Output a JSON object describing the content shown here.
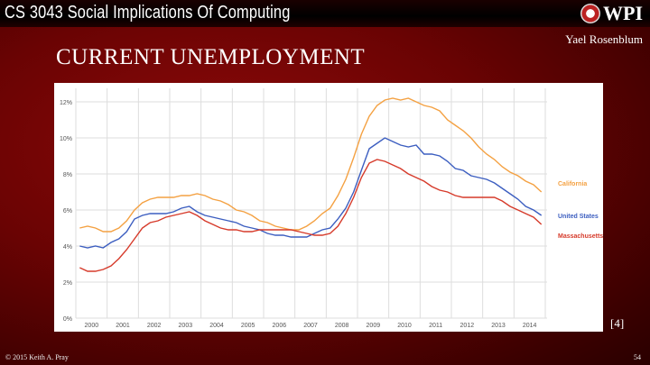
{
  "slide": {
    "course": "CS 3043 Social Implications Of Computing",
    "logo_text": "WPI",
    "author": "Yael Rosenblum",
    "title": "CURRENT UNEMPLOYMENT",
    "reference": "[4]",
    "copyright": "© 2015 Keith A. Pray",
    "page_number": "54"
  },
  "chart_data": {
    "type": "line",
    "title": "",
    "xlabel": "",
    "ylabel": "",
    "x_ticks": [
      "2000",
      "2001",
      "2002",
      "2003",
      "2004",
      "2005",
      "2006",
      "2007",
      "2008",
      "2009",
      "2010",
      "2011",
      "2012",
      "2013",
      "2014"
    ],
    "y_ticks": [
      "0%",
      "2%",
      "4%",
      "6%",
      "8%",
      "10%",
      "12%"
    ],
    "ylim": [
      0,
      12
    ],
    "xlim": [
      2000,
      2015
    ],
    "grid": true,
    "legend": "right, end-of-line labels",
    "x_step": "quarterly",
    "series": [
      {
        "name": "California",
        "color": "#f4a142",
        "values": [
          5.0,
          5.1,
          5.0,
          4.8,
          4.8,
          5.0,
          5.4,
          6.0,
          6.4,
          6.6,
          6.7,
          6.7,
          6.7,
          6.8,
          6.8,
          6.9,
          6.8,
          6.6,
          6.5,
          6.3,
          6.0,
          5.9,
          5.7,
          5.4,
          5.3,
          5.1,
          5.0,
          4.9,
          4.9,
          5.1,
          5.4,
          5.8,
          6.1,
          6.8,
          7.7,
          8.9,
          10.2,
          11.2,
          11.8,
          12.1,
          12.2,
          12.1,
          12.2,
          12.0,
          11.8,
          11.7,
          11.5,
          11.0,
          10.7,
          10.4,
          10.0,
          9.5,
          9.1,
          8.8,
          8.4,
          8.1,
          7.9,
          7.6,
          7.4,
          7.0
        ]
      },
      {
        "name": "United States",
        "color": "#3c5ec0",
        "values": [
          4.0,
          3.9,
          4.0,
          3.9,
          4.2,
          4.4,
          4.8,
          5.5,
          5.7,
          5.8,
          5.8,
          5.8,
          5.9,
          6.1,
          6.2,
          5.9,
          5.7,
          5.6,
          5.5,
          5.4,
          5.3,
          5.1,
          5.0,
          4.9,
          4.7,
          4.6,
          4.6,
          4.5,
          4.5,
          4.5,
          4.7,
          4.9,
          5.0,
          5.5,
          6.1,
          7.0,
          8.2,
          9.4,
          9.7,
          10.0,
          9.8,
          9.6,
          9.5,
          9.6,
          9.1,
          9.1,
          9.0,
          8.7,
          8.3,
          8.2,
          7.9,
          7.8,
          7.7,
          7.5,
          7.2,
          6.9,
          6.6,
          6.2,
          6.0,
          5.7
        ]
      },
      {
        "name": "Massachusetts",
        "color": "#d63a2a",
        "values": [
          2.8,
          2.6,
          2.6,
          2.7,
          2.9,
          3.3,
          3.8,
          4.4,
          5.0,
          5.3,
          5.4,
          5.6,
          5.7,
          5.8,
          5.9,
          5.7,
          5.4,
          5.2,
          5.0,
          4.9,
          4.9,
          4.8,
          4.8,
          4.9,
          4.9,
          4.9,
          4.9,
          4.9,
          4.8,
          4.7,
          4.6,
          4.6,
          4.7,
          5.1,
          5.8,
          6.7,
          7.8,
          8.6,
          8.8,
          8.7,
          8.5,
          8.3,
          8.0,
          7.8,
          7.6,
          7.3,
          7.1,
          7.0,
          6.8,
          6.7,
          6.7,
          6.7,
          6.7,
          6.7,
          6.5,
          6.2,
          6.0,
          5.8,
          5.6,
          5.2
        ]
      }
    ]
  }
}
